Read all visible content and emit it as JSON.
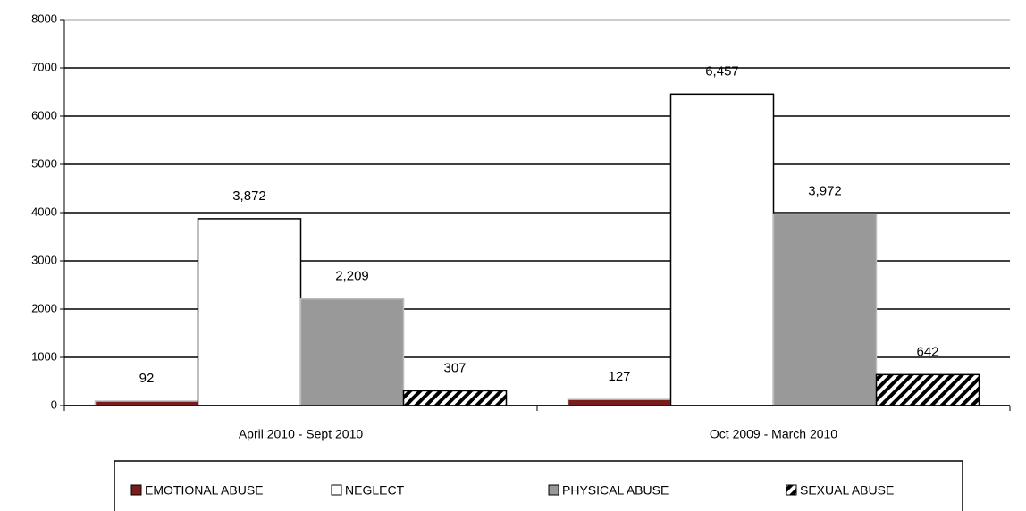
{
  "chart_data": {
    "type": "bar",
    "categories": [
      "April 2010 - Sept 2010",
      "Oct 2009 - March 2010"
    ],
    "series": [
      {
        "name": "EMOTIONAL ABUSE",
        "color": "#7b1c1c",
        "values": [
          92,
          127
        ],
        "value_labels": [
          "92",
          "127"
        ]
      },
      {
        "name": "NEGLECT",
        "color": "#ffffff",
        "values": [
          3872,
          6457
        ],
        "value_labels": [
          "3,872",
          "6,457"
        ]
      },
      {
        "name": "PHYSICAL ABUSE",
        "color": "#999999",
        "values": [
          2209,
          3972
        ],
        "value_labels": [
          "2,209",
          "3,972"
        ]
      },
      {
        "name": "SEXUAL ABUSE",
        "color": "#ffffff",
        "hatch": true,
        "values": [
          307,
          642
        ],
        "value_labels": [
          "307",
          "642"
        ]
      }
    ],
    "ylim": [
      0,
      8000
    ],
    "yticks": [
      0,
      1000,
      2000,
      3000,
      4000,
      5000,
      6000,
      7000,
      8000
    ],
    "grid": true,
    "legend": "bottom"
  }
}
